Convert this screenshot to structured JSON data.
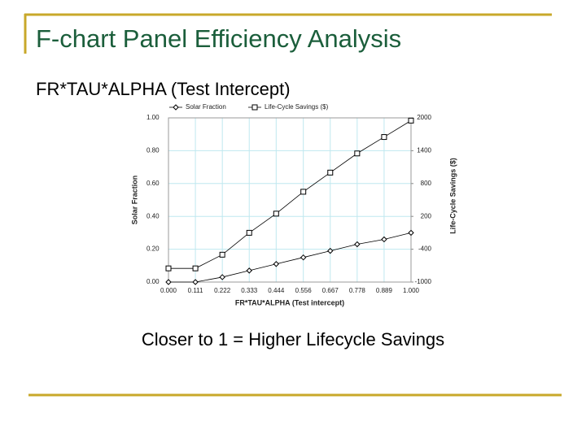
{
  "slide": {
    "title": "F-chart Panel Efficiency Analysis",
    "heading": "FR*TAU*ALPHA (Test Intercept)",
    "caption": "Closer to 1 = Higher Lifecycle Savings"
  },
  "chart_data": {
    "type": "line",
    "x_label": "FR*TAU*ALPHA (Test intercept)",
    "y_label": "Solar Fraction",
    "y2_label": "Life-Cycle Savings ($)",
    "x": [
      0,
      0.111,
      0.222,
      0.333,
      0.444,
      0.556,
      0.667,
      0.778,
      0.889,
      1.0
    ],
    "series": [
      {
        "name": "Solar Fraction",
        "color": "#000000",
        "marker": "diamond",
        "values": [
          0,
          0,
          0.03,
          0.07,
          0.11,
          0.15,
          0.19,
          0.23,
          0.26,
          0.3
        ]
      },
      {
        "name": "Life-Cycle Savings ($)",
        "color": "#000000",
        "marker": "square",
        "axis": "y2",
        "values": [
          -750,
          -750,
          -500,
          -100,
          250,
          650,
          1000,
          1350,
          1650,
          1950
        ]
      }
    ],
    "xlim": [
      0,
      1
    ],
    "xticks": [
      {
        "value": 0,
        "label": "0.000"
      },
      0.111,
      0.222,
      0.333,
      0.444,
      0.556,
      0.667,
      0.778,
      0.889,
      {
        "value": 1,
        "label": "1.000"
      }
    ],
    "ylim": [
      0,
      1
    ],
    "yticks": [
      {
        "value": 0,
        "label": "0.00"
      },
      {
        "value": 0.2,
        "label": "0.20"
      },
      {
        "value": 0.4,
        "label": "0.40"
      },
      {
        "value": 0.6,
        "label": "0.60"
      },
      {
        "value": 0.8,
        "label": "0.80"
      },
      {
        "value": 1,
        "label": "1.00"
      }
    ],
    "y2lim": [
      -1000,
      2000
    ],
    "y2ticks": [
      -1000,
      -400,
      200,
      800,
      1400,
      2000
    ],
    "grid": true,
    "legend": "top"
  }
}
